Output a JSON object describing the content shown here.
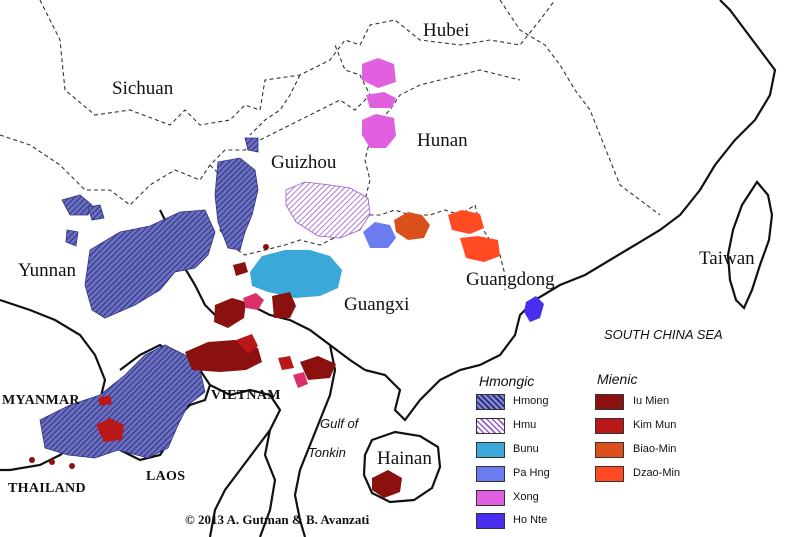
{
  "map": {
    "provinces": {
      "hubei": "Hubei",
      "sichuan": "Sichuan",
      "hunan": "Hunan",
      "guizhou": "Guizhou",
      "yunnan": "Yunnan",
      "guangxi": "Guangxi",
      "guangdong": "Guangdong",
      "taiwan": "Taiwan",
      "hainan": "Hainan"
    },
    "countries": {
      "myanmar": "MYANMAR",
      "vietnam": "VIETNAM",
      "thailand": "THAILAND",
      "laos": "LAOS"
    },
    "water": {
      "south_china_sea": "SOUTH CHINA SEA",
      "gulf_line1": "Gulf of",
      "gulf_line2": "Tonkin"
    },
    "credit": "© 2013 A. Gutman & B. Avanzati"
  },
  "legend": {
    "hmongic": {
      "title": "Hmongic",
      "items": [
        {
          "label": "Hmong",
          "color": "#4a4fa0",
          "pattern": "hatched"
        },
        {
          "label": "Hmu",
          "color": "#9b59d0",
          "pattern": "hatched"
        },
        {
          "label": "Bunu",
          "color": "#3aa8d8",
          "pattern": "solid"
        },
        {
          "label": "Pa Hng",
          "color": "#6b7cf0",
          "pattern": "solid"
        },
        {
          "label": "Xong",
          "color": "#e060e0",
          "pattern": "solid"
        },
        {
          "label": "Ho Nte",
          "color": "#4a2ef0",
          "pattern": "solid"
        }
      ]
    },
    "mienic": {
      "title": "Mienic",
      "items": [
        {
          "label": "Iu Mien",
          "color": "#8b1010"
        },
        {
          "label": "Kim Mun",
          "color": "#b81818"
        },
        {
          "label": "Biao-Min",
          "color": "#d9501c"
        },
        {
          "label": "Dzao-Min",
          "color": "#ff4a22"
        }
      ]
    }
  }
}
